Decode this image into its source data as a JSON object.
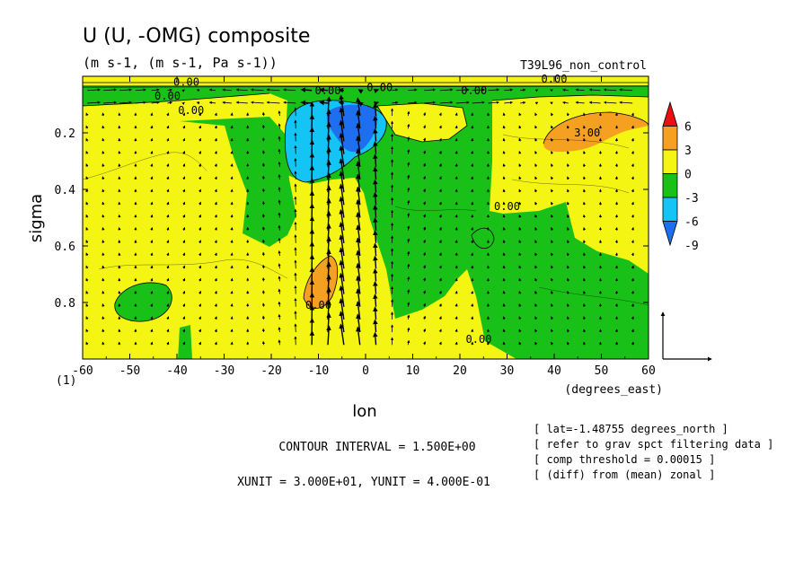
{
  "chart_data": {
    "type": "heatmap",
    "title": "U (U, -OMG) composite",
    "subtitle": "(m s-1, (m s-1, Pa s-1))",
    "run_label": "T39L96_non_control",
    "xlabel": "lon",
    "xunit_label": "(degrees_east)",
    "ylabel": "sigma",
    "corner_label": "(1)",
    "xlim": [
      -60,
      60
    ],
    "ylim": [
      1.0,
      0.0
    ],
    "xticks": [
      -60,
      -50,
      -40,
      -30,
      -20,
      -10,
      0,
      10,
      20,
      30,
      40,
      50,
      60
    ],
    "yticks": [
      0.2,
      0.4,
      0.6,
      0.8
    ],
    "colorbar": {
      "levels": [
        -9,
        -6,
        -3,
        0,
        3,
        6
      ],
      "tick_labels": [
        "6",
        "3",
        "0",
        "-3",
        "-6",
        "-9"
      ],
      "colors": [
        "#1e6ff0",
        "#13c4f5",
        "#18c018",
        "#f5f513",
        "#f5a020",
        "#e81010"
      ]
    },
    "contour_labels": [
      {
        "text": "0.00",
        "x": -42,
        "y": 0.07
      },
      {
        "text": "0.00",
        "x": -37,
        "y": 0.12
      },
      {
        "text": "0.00",
        "x": -38,
        "y": 0.02
      },
      {
        "text": "0.00",
        "x": -8,
        "y": 0.05
      },
      {
        "text": "0.00",
        "x": 3,
        "y": 0.04
      },
      {
        "text": "0.00",
        "x": 23,
        "y": 0.05
      },
      {
        "text": "0.00",
        "x": 40,
        "y": 0.01
      },
      {
        "text": "3.00",
        "x": 47,
        "y": 0.2
      },
      {
        "text": "0.00",
        "x": 30,
        "y": 0.46
      },
      {
        "text": "0.00",
        "x": -10,
        "y": 0.81
      },
      {
        "text": "0.00",
        "x": 24,
        "y": 0.93
      }
    ],
    "contour_interval": "CONTOUR INTERVAL = 1.500E+00",
    "units_note": "XUNIT = 3.000E+01, YUNIT = 4.000E-01",
    "info_lines": [
      "[ lat=-1.48755 degrees_north ]",
      "[ refer to grav spct filtering data ]",
      "[ comp threshold = 0.00015 ]",
      "[ (diff) from (mean) zonal ]"
    ],
    "filled_regions": [
      {
        "level": "-3 to 0",
        "color": "#18c018"
      },
      {
        "level": "0 to 3",
        "color": "#f5f513"
      },
      {
        "level": "3 to 6",
        "color": "#f5a020"
      },
      {
        "level": "-6 to -3",
        "color": "#13c4f5"
      },
      {
        "level": "-9 to -6",
        "color": "#1e6ff0"
      }
    ],
    "vector_field": {
      "strong_updraft_lon_range": [
        -15,
        5
      ],
      "reference_vector": {
        "xunit": 30,
        "yunit": 0.4
      }
    },
    "grid": false,
    "legend": "right"
  }
}
